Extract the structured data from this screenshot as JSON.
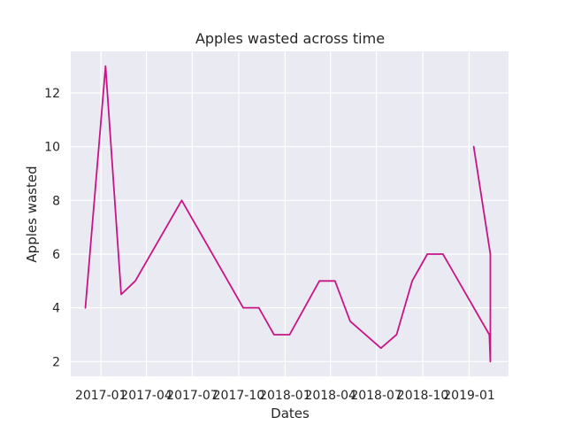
{
  "chart_data": {
    "type": "line",
    "title": "Apples wasted across time",
    "xlabel": "Dates",
    "ylabel": "Apples wasted",
    "x_axis_type": "date",
    "xlim": [
      "2016-11-02",
      "2019-03-20"
    ],
    "ylim": [
      1.45,
      13.55
    ],
    "yticks": [
      2,
      4,
      6,
      8,
      10,
      12
    ],
    "xticks": [
      {
        "date": "2017-01-01",
        "label": "2017-01"
      },
      {
        "date": "2017-04-01",
        "label": "2017-04"
      },
      {
        "date": "2017-07-01",
        "label": "2017-07"
      },
      {
        "date": "2017-10-01",
        "label": "2017-10"
      },
      {
        "date": "2018-01-01",
        "label": "2018-01"
      },
      {
        "date": "2018-04-01",
        "label": "2018-04"
      },
      {
        "date": "2018-07-01",
        "label": "2018-07"
      },
      {
        "date": "2018-10-01",
        "label": "2018-10"
      },
      {
        "date": "2019-01-01",
        "label": "2019-01"
      }
    ],
    "grid": true,
    "background_color": "#eaeaf2",
    "grid_color": "#ffffff",
    "series": [
      {
        "color": "#c71585",
        "x": [
          "2016-12-01",
          "2017-01-10",
          "2017-02-10",
          "2017-03-10",
          "2017-06-10",
          "2017-10-10",
          "2017-11-10",
          "2017-12-10",
          "2018-01-10",
          "2018-03-10",
          "2018-04-10",
          "2018-05-10",
          "2018-07-10",
          "2018-08-10",
          "2018-09-10",
          "2018-10-10",
          "2018-11-10",
          "2019-02-10",
          "2019-02-12",
          "2019-02-12",
          "2019-02-12",
          "2019-02-12",
          "2019-01-10",
          "2019-02-12",
          "2019-02-12"
        ],
        "y": [
          4,
          13,
          4.5,
          5,
          8,
          4,
          4,
          3,
          3,
          5,
          5,
          3.5,
          2.5,
          3,
          5,
          6,
          6,
          3,
          2,
          5,
          2,
          6,
          10,
          6,
          5
        ]
      }
    ]
  }
}
